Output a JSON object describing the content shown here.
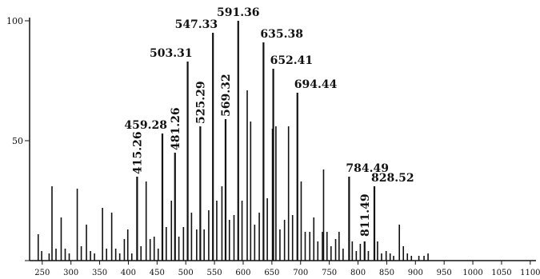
{
  "chart_data": {
    "type": "bar",
    "title": "",
    "xlabel": "",
    "ylabel": "",
    "xlim": [
      228,
      1110
    ],
    "ylim": [
      0,
      100
    ],
    "x_ticks": [
      250,
      300,
      350,
      400,
      450,
      500,
      550,
      600,
      650,
      700,
      750,
      800,
      850,
      900,
      950,
      1000,
      1050,
      1100
    ],
    "y_ticks": [
      0,
      50,
      100
    ],
    "y_tick_labels": [
      "",
      "50",
      "100"
    ],
    "bar_color": "#111111",
    "peaks": [
      {
        "x": 243,
        "y": 11
      },
      {
        "x": 249,
        "y": 4
      },
      {
        "x": 262,
        "y": 3
      },
      {
        "x": 267,
        "y": 31
      },
      {
        "x": 274,
        "y": 5
      },
      {
        "x": 283,
        "y": 18
      },
      {
        "x": 290,
        "y": 5
      },
      {
        "x": 297,
        "y": 3
      },
      {
        "x": 311,
        "y": 30
      },
      {
        "x": 318,
        "y": 6
      },
      {
        "x": 327,
        "y": 15
      },
      {
        "x": 334,
        "y": 4
      },
      {
        "x": 341,
        "y": 3
      },
      {
        "x": 355,
        "y": 22
      },
      {
        "x": 362,
        "y": 5
      },
      {
        "x": 371,
        "y": 20
      },
      {
        "x": 378,
        "y": 5
      },
      {
        "x": 385,
        "y": 3
      },
      {
        "x": 393,
        "y": 9
      },
      {
        "x": 399,
        "y": 13
      },
      {
        "x": 406,
        "y": 3
      },
      {
        "x": 415.26,
        "y": 35,
        "label": "415.26"
      },
      {
        "x": 422,
        "y": 6
      },
      {
        "x": 431,
        "y": 33
      },
      {
        "x": 438,
        "y": 9
      },
      {
        "x": 445,
        "y": 10
      },
      {
        "x": 452,
        "y": 5
      },
      {
        "x": 459.28,
        "y": 53,
        "label": "459.28"
      },
      {
        "x": 466,
        "y": 14
      },
      {
        "x": 475,
        "y": 25
      },
      {
        "x": 481.26,
        "y": 45,
        "label": "481.26"
      },
      {
        "x": 488,
        "y": 10
      },
      {
        "x": 496,
        "y": 14
      },
      {
        "x": 503.31,
        "y": 83,
        "label": "503.31"
      },
      {
        "x": 510,
        "y": 20
      },
      {
        "x": 519,
        "y": 13
      },
      {
        "x": 525.29,
        "y": 56,
        "label": "525.29"
      },
      {
        "x": 532,
        "y": 13
      },
      {
        "x": 540,
        "y": 21
      },
      {
        "x": 547.33,
        "y": 95,
        "label": "547.33"
      },
      {
        "x": 554,
        "y": 25
      },
      {
        "x": 563,
        "y": 31
      },
      {
        "x": 569.32,
        "y": 59,
        "label": "569.32"
      },
      {
        "x": 576,
        "y": 17
      },
      {
        "x": 584,
        "y": 19
      },
      {
        "x": 591.36,
        "y": 100,
        "label": "591.36"
      },
      {
        "x": 598,
        "y": 25
      },
      {
        "x": 607,
        "y": 71
      },
      {
        "x": 613,
        "y": 58
      },
      {
        "x": 620,
        "y": 15
      },
      {
        "x": 628,
        "y": 20
      },
      {
        "x": 635.38,
        "y": 91,
        "label": "635.38"
      },
      {
        "x": 642,
        "y": 26
      },
      {
        "x": 651,
        "y": 55
      },
      {
        "x": 652.41,
        "y": 80,
        "label": "652.41"
      },
      {
        "x": 657,
        "y": 56
      },
      {
        "x": 664,
        "y": 13
      },
      {
        "x": 672,
        "y": 17
      },
      {
        "x": 679,
        "y": 56
      },
      {
        "x": 686,
        "y": 19
      },
      {
        "x": 694.44,
        "y": 70,
        "label": "694.44"
      },
      {
        "x": 701,
        "y": 33
      },
      {
        "x": 708,
        "y": 12
      },
      {
        "x": 716,
        "y": 12
      },
      {
        "x": 723,
        "y": 18
      },
      {
        "x": 730,
        "y": 8
      },
      {
        "x": 738,
        "y": 12
      },
      {
        "x": 740,
        "y": 38
      },
      {
        "x": 746,
        "y": 12
      },
      {
        "x": 753,
        "y": 6
      },
      {
        "x": 761,
        "y": 9
      },
      {
        "x": 767,
        "y": 12
      },
      {
        "x": 774,
        "y": 5
      },
      {
        "x": 784.49,
        "y": 35,
        "label": "784.49"
      },
      {
        "x": 790,
        "y": 8
      },
      {
        "x": 797,
        "y": 4
      },
      {
        "x": 804,
        "y": 7
      },
      {
        "x": 811.49,
        "y": 8,
        "label": "811.49"
      },
      {
        "x": 818,
        "y": 4
      },
      {
        "x": 828.52,
        "y": 31,
        "label": "828.52"
      },
      {
        "x": 834,
        "y": 8
      },
      {
        "x": 841,
        "y": 3
      },
      {
        "x": 849,
        "y": 4
      },
      {
        "x": 856,
        "y": 3
      },
      {
        "x": 862,
        "y": 2
      },
      {
        "x": 872,
        "y": 15
      },
      {
        "x": 879,
        "y": 6
      },
      {
        "x": 886,
        "y": 3
      },
      {
        "x": 893,
        "y": 2
      },
      {
        "x": 906,
        "y": 2
      },
      {
        "x": 915,
        "y": 2
      },
      {
        "x": 922,
        "y": 3
      }
    ]
  }
}
